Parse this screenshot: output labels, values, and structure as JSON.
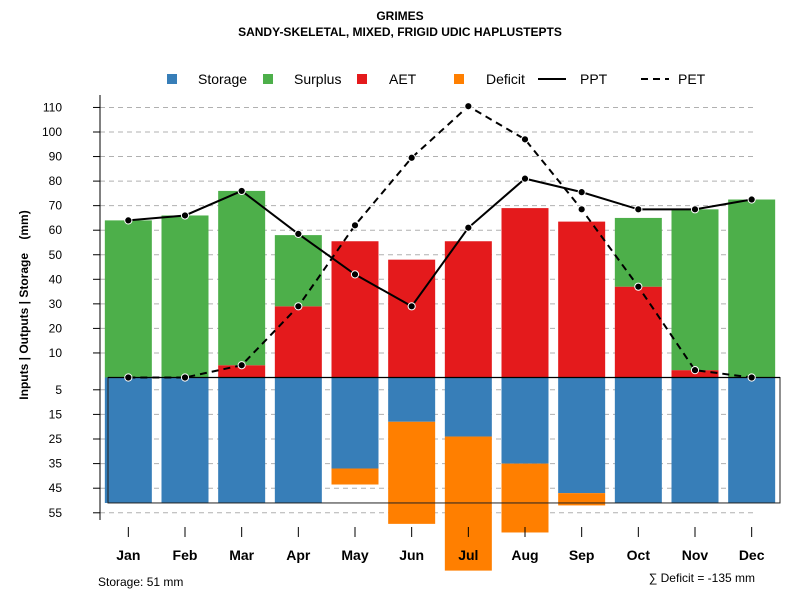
{
  "chart_data": {
    "type": "bar",
    "title": "GRIMES",
    "subtitle": "SANDY-SKELETAL, MIXED, FRIGID UDIC HAPLUSTEPTS",
    "ylabel": "Inputs | Outputs | Storage    (mm)",
    "categories": [
      "Jan",
      "Feb",
      "Mar",
      "Apr",
      "May",
      "Jun",
      "Jul",
      "Aug",
      "Sep",
      "Oct",
      "Nov",
      "Dec"
    ],
    "highlight_category": "Jul",
    "upper_ticks": [
      10,
      20,
      30,
      40,
      50,
      60,
      70,
      80,
      90,
      100,
      110
    ],
    "lower_ticks": [
      5,
      15,
      25,
      35,
      45,
      55
    ],
    "ylim_upper": [
      0,
      110
    ],
    "ylim_lower": [
      0,
      55
    ],
    "grid": true,
    "legend_position": "top",
    "legend": [
      {
        "label": "Storage",
        "kind": "square",
        "color": "#377EB8"
      },
      {
        "label": "Surplus",
        "kind": "square",
        "color": "#4DAF4A"
      },
      {
        "label": "AET",
        "kind": "square",
        "color": "#E41A1C"
      },
      {
        "label": "Deficit",
        "kind": "square",
        "color": "#FF7F00"
      },
      {
        "label": "PPT",
        "kind": "solid-line",
        "color": "#000000"
      },
      {
        "label": "PET",
        "kind": "dashed-line",
        "color": "#000000"
      }
    ],
    "series": [
      {
        "name": "AET",
        "color": "#E41A1C",
        "values": [
          0,
          0,
          5,
          29,
          55.5,
          48,
          55.5,
          69,
          63.5,
          37,
          3,
          0
        ]
      },
      {
        "name": "Surplus",
        "color": "#4DAF4A",
        "values": [
          64,
          66,
          71,
          29,
          0,
          0,
          0,
          0,
          0,
          28,
          65.5,
          72.5
        ]
      },
      {
        "name": "Storage",
        "color": "#377EB8",
        "values": [
          51,
          51,
          51,
          51,
          37,
          18,
          24,
          35,
          47,
          51,
          51,
          51
        ]
      },
      {
        "name": "Deficit",
        "color": "#FF7F00",
        "values": [
          0,
          0,
          0,
          0,
          6.5,
          41.5,
          54.5,
          28,
          5,
          0,
          0,
          0
        ]
      },
      {
        "name": "PPT",
        "color": "#000000",
        "values": [
          64,
          66,
          76,
          58.5,
          42,
          29,
          61,
          81,
          75.5,
          68.5,
          68.5,
          72.5
        ]
      },
      {
        "name": "PET",
        "color": "#000000",
        "values": [
          0,
          0,
          5,
          29,
          62,
          89.5,
          110.5,
          97,
          68.5,
          37,
          3,
          0
        ]
      }
    ],
    "storage_capacity": 51
  },
  "notes": {
    "storage": "Storage: 51 mm",
    "deficit": "∑ Deficit = -135 mm"
  }
}
